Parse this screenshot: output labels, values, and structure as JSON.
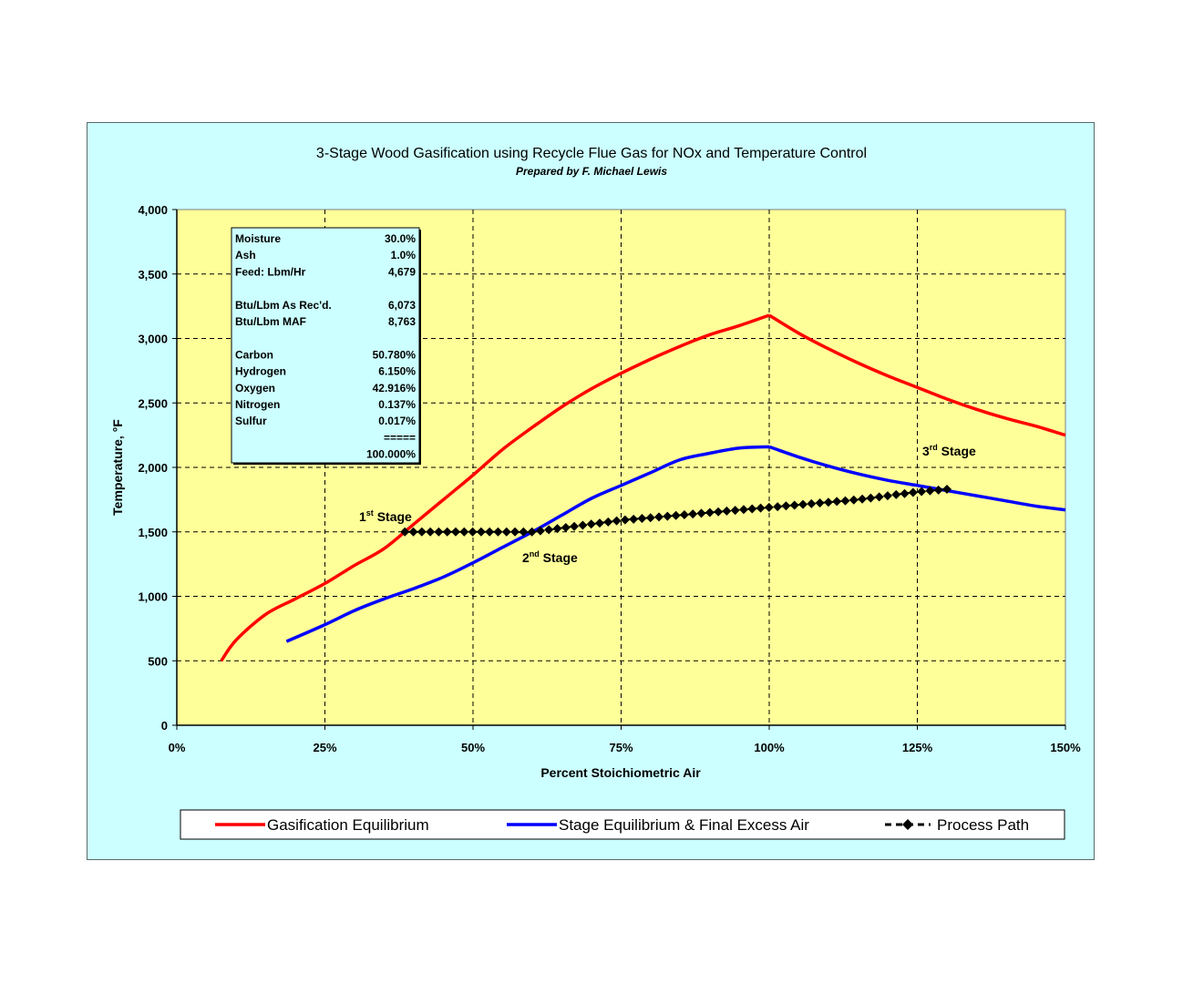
{
  "chart_data": {
    "type": "line",
    "title": "3-Stage Wood Gasification using Recycle Flue Gas for NOx and Temperature Control",
    "subtitle": "Prepared by F. Michael Lewis",
    "xlabel": "Percent Stoichiometric Air",
    "ylabel": "Temperature, °F",
    "xlim": [
      0,
      150
    ],
    "ylim": [
      0,
      4000
    ],
    "x_ticks": [
      "0%",
      "25%",
      "50%",
      "75%",
      "100%",
      "125%",
      "150%"
    ],
    "y_ticks": [
      "0",
      "500",
      "1,000",
      "1,500",
      "2,000",
      "2,500",
      "3,000",
      "3,500",
      "4,000"
    ],
    "grid": true,
    "legend_position": "bottom",
    "series": [
      {
        "name": "Gasification Equilibrium",
        "color": "#ff0000",
        "points": [
          [
            7.5,
            500
          ],
          [
            10,
            660
          ],
          [
            15,
            860
          ],
          [
            20,
            980
          ],
          [
            25,
            1100
          ],
          [
            30,
            1240
          ],
          [
            35,
            1370
          ],
          [
            40,
            1560
          ],
          [
            45,
            1750
          ],
          [
            50,
            1940
          ],
          [
            55,
            2140
          ],
          [
            60,
            2310
          ],
          [
            65,
            2470
          ],
          [
            70,
            2610
          ],
          [
            75,
            2730
          ],
          [
            80,
            2840
          ],
          [
            85,
            2940
          ],
          [
            90,
            3030
          ],
          [
            95,
            3100
          ],
          [
            100,
            3180
          ],
          [
            105,
            3040
          ],
          [
            110,
            2920
          ],
          [
            115,
            2810
          ],
          [
            120,
            2710
          ],
          [
            125,
            2620
          ],
          [
            130,
            2530
          ],
          [
            135,
            2450
          ],
          [
            140,
            2380
          ],
          [
            145,
            2320
          ],
          [
            150,
            2250
          ]
        ]
      },
      {
        "name": "Stage Equilibrium & Final Excess Air",
        "color": "#0000ff",
        "points": [
          [
            18.5,
            650
          ],
          [
            25,
            780
          ],
          [
            30,
            890
          ],
          [
            35,
            980
          ],
          [
            40,
            1060
          ],
          [
            45,
            1150
          ],
          [
            50,
            1260
          ],
          [
            55,
            1380
          ],
          [
            60,
            1500
          ],
          [
            65,
            1630
          ],
          [
            70,
            1760
          ],
          [
            75,
            1860
          ],
          [
            80,
            1960
          ],
          [
            85,
            2060
          ],
          [
            90,
            2110
          ],
          [
            95,
            2150
          ],
          [
            100,
            2160
          ],
          [
            105,
            2080
          ],
          [
            110,
            2010
          ],
          [
            115,
            1950
          ],
          [
            120,
            1900
          ],
          [
            125,
            1860
          ],
          [
            130,
            1820
          ],
          [
            135,
            1780
          ],
          [
            140,
            1740
          ],
          [
            145,
            1700
          ],
          [
            150,
            1670
          ]
        ]
      },
      {
        "name": "Process Path",
        "color": "#000000",
        "x_start": 38.5,
        "x_end": 130,
        "points": [
          [
            38.5,
            1500
          ],
          [
            45,
            1500
          ],
          [
            50,
            1500
          ],
          [
            55,
            1500
          ],
          [
            60,
            1500
          ],
          [
            65,
            1530
          ],
          [
            70,
            1560
          ],
          [
            75,
            1590
          ],
          [
            80,
            1610
          ],
          [
            85,
            1630
          ],
          [
            90,
            1650
          ],
          [
            95,
            1670
          ],
          [
            100,
            1690
          ],
          [
            105,
            1710
          ],
          [
            110,
            1730
          ],
          [
            115,
            1750
          ],
          [
            120,
            1780
          ],
          [
            125,
            1810
          ],
          [
            130,
            1830
          ]
        ]
      }
    ],
    "annotations": [
      {
        "base": "1",
        "sup": "st",
        "text": " Stage"
      },
      {
        "base": "2",
        "sup": "nd",
        "text": " Stage"
      },
      {
        "base": "3",
        "sup": "rd",
        "text": " Stage"
      }
    ],
    "info_box": {
      "rows": [
        {
          "label": "Moisture",
          "value": "30.0%"
        },
        {
          "label": "Ash",
          "value": "1.0%"
        },
        {
          "label": "Feed: Lbm/Hr",
          "value": "4,679"
        },
        {
          "label": "",
          "value": ""
        },
        {
          "label": "Btu/Lbm As Rec'd.",
          "value": "6,073"
        },
        {
          "label": "Btu/Lbm MAF",
          "value": "8,763"
        },
        {
          "label": "",
          "value": ""
        },
        {
          "label": "Carbon",
          "value": "50.780%"
        },
        {
          "label": "Hydrogen",
          "value": "6.150%"
        },
        {
          "label": "Oxygen",
          "value": "42.916%"
        },
        {
          "label": "Nitrogen",
          "value": "0.137%"
        },
        {
          "label": "Sulfur",
          "value": "0.017%"
        },
        {
          "label": "",
          "value": "====="
        },
        {
          "label": "",
          "value": "100.000%"
        }
      ]
    },
    "colors": {
      "frame_background": "#ccffff",
      "plot_background": "#ffff99"
    }
  }
}
